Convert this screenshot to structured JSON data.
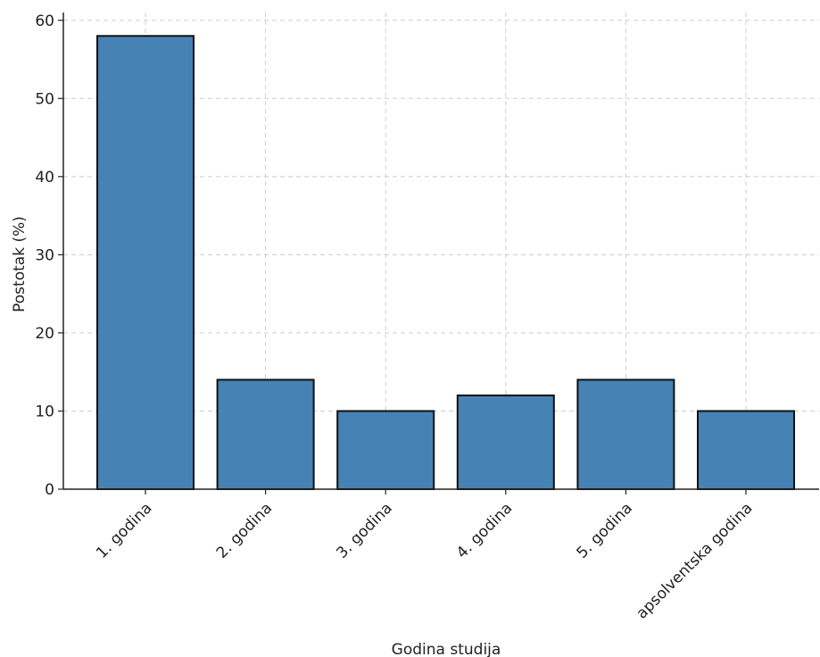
{
  "chart_data": {
    "type": "bar",
    "title": "",
    "xlabel": "Godina studija",
    "ylabel": "Postotak (%)",
    "categories": [
      "1. godina",
      "2. godina",
      "3. godina",
      "4. godina",
      "5. godina",
      "apsolventska godina"
    ],
    "values": [
      58,
      14,
      10,
      12,
      14,
      10
    ],
    "ylim": [
      0,
      61
    ],
    "yticks": [
      0,
      10,
      20,
      30,
      40,
      50,
      60
    ],
    "grid": true,
    "legend": "none",
    "colors": {
      "bar": "#4682b4",
      "bar_edge": "#111111",
      "grid": "#cccccc",
      "axis": "#222222"
    }
  }
}
